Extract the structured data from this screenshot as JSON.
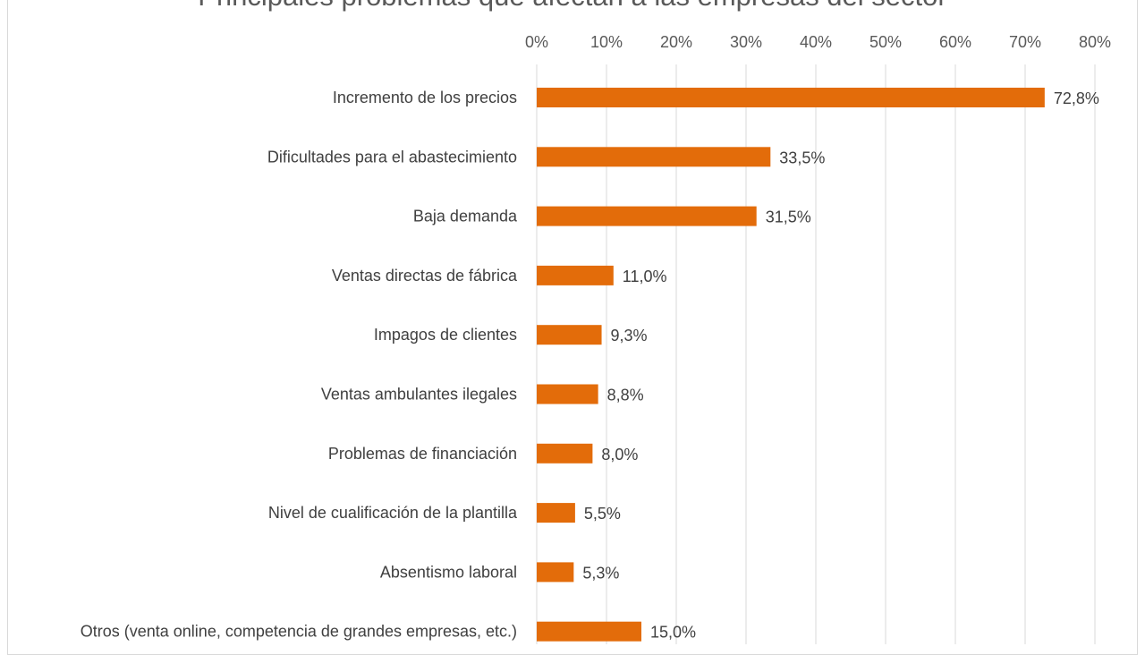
{
  "chart_data": {
    "type": "bar",
    "orientation": "horizontal",
    "title": "Principales problemas que afectan a las empresas del sector",
    "xlabel": "",
    "ylabel": "",
    "xlim": [
      0,
      80
    ],
    "ticks": [
      "0%",
      "10%",
      "20%",
      "30%",
      "40%",
      "50%",
      "60%",
      "70%",
      "80%"
    ],
    "tick_values": [
      0,
      10,
      20,
      30,
      40,
      50,
      60,
      70,
      80
    ],
    "grid": true,
    "categories": [
      "Incremento de los precios",
      "Dificultades para el abastecimiento",
      "Baja demanda",
      "Ventas directas de fábrica",
      "Impagos de clientes",
      "Ventas ambulantes ilegales",
      "Problemas de financiación",
      "Nivel de cualificación de la plantilla",
      "Absentismo laboral",
      "Otros (venta online, competencia de grandes empresas, etc.)"
    ],
    "values": [
      72.8,
      33.5,
      31.5,
      11.0,
      9.3,
      8.8,
      8.0,
      5.5,
      5.3,
      15.0
    ],
    "value_labels": [
      "72,8%",
      "33,5%",
      "31,5%",
      "11,0%",
      "9,3%",
      "8,8%",
      "8,0%",
      "5,5%",
      "5,3%",
      "15,0%"
    ],
    "bar_color": "#E36C0A",
    "grid_color": "#D9D9D9"
  }
}
